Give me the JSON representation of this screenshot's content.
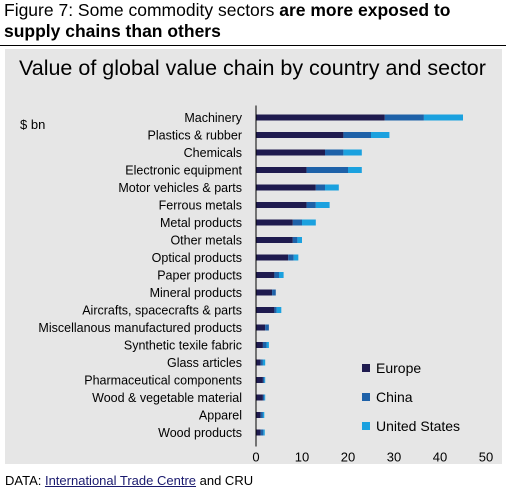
{
  "figure": {
    "title_prefix": "Figure 7: Some commodity sectors ",
    "title_bold": "are more exposed to supply chains than others"
  },
  "colors": {
    "panel_bg": "#e6e6e6",
    "europe": "#1f1b4f",
    "china": "#1e61a8",
    "united_states": "#1ba1df"
  },
  "source": {
    "prefix": "DATA: ",
    "link_text": "International Trade Centre",
    "suffix": " and CRU"
  },
  "chart_data": {
    "type": "bar",
    "orientation": "horizontal",
    "stacked": true,
    "title": "Value of global value chain by country and sector",
    "unit_label": "$ bn",
    "xlim": [
      0,
      50
    ],
    "xticks": [
      0,
      10,
      20,
      30,
      40,
      50
    ],
    "grid": false,
    "legend_position": "bottom-right",
    "categories": [
      "Machinery",
      "Plastics & rubber",
      "Chemicals",
      "Electronic equipment",
      "Motor vehicles & parts",
      "Ferrous metals",
      "Metal products",
      "Other metals",
      "Optical products",
      "Paper products",
      "Mineral products",
      "Aircrafts, spacecrafts & parts",
      "Miscellanous manufactured products",
      "Synthetic texile fabric",
      "Glass articles",
      "Pharmaceutical components",
      "Wood & vegetable material",
      "Apparel",
      "Wood products"
    ],
    "series": [
      {
        "name": "Europe",
        "color": "#1f1b4f",
        "values": [
          28,
          19,
          15,
          11,
          13,
          11,
          8,
          8,
          7,
          4,
          3.5,
          4,
          2,
          1.5,
          1,
          1.5,
          1.5,
          1,
          1
        ]
      },
      {
        "name": "China",
        "color": "#1e61a8",
        "values": [
          8.5,
          6,
          4,
          9,
          2,
          2,
          2,
          1,
          1.2,
          1,
          0.8,
          0.5,
          0.8,
          0.8,
          0.5,
          0.3,
          0.3,
          0.5,
          0.6
        ]
      },
      {
        "name": "United States",
        "color": "#1ba1df",
        "values": [
          8.5,
          4,
          4,
          3,
          3,
          3,
          3,
          1,
          1,
          1,
          0,
          1,
          0,
          0.5,
          0.5,
          0.2,
          0.2,
          0.3,
          0.3
        ]
      }
    ]
  }
}
